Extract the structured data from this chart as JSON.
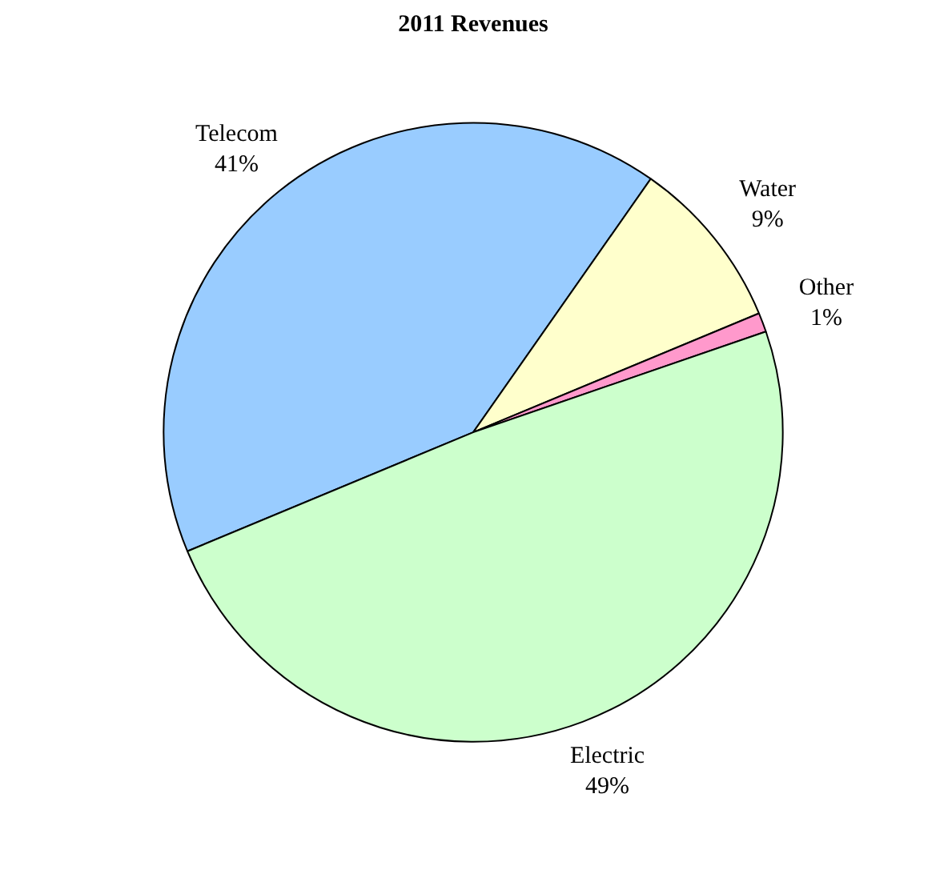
{
  "chart_data": {
    "type": "pie",
    "title": "2011 Revenues",
    "categories": [
      "Telecom",
      "Water",
      "Other",
      "Electric"
    ],
    "values": [
      41,
      9,
      1,
      49
    ],
    "value_labels": [
      "41%",
      "9%",
      "1%",
      "49%"
    ],
    "colors": [
      "#99ccff",
      "#ffffcc",
      "#ff99cc",
      "#ccffcc"
    ]
  }
}
